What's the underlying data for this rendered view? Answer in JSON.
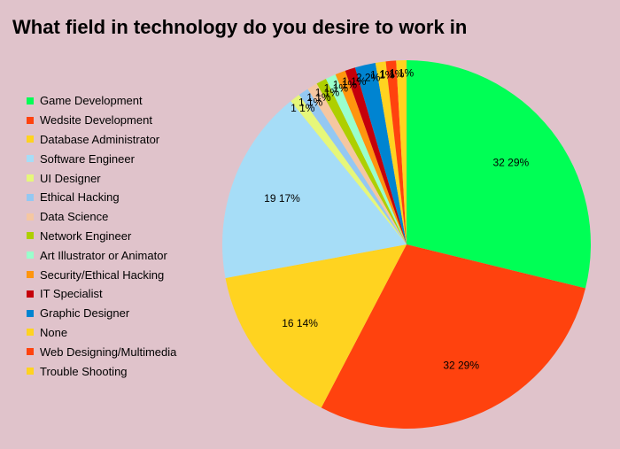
{
  "chart_data": {
    "type": "pie",
    "title": "What field in technology do you desire to work in",
    "legend_position": "left",
    "slices": [
      {
        "label": "Game Development",
        "value": 32,
        "percent": "29%",
        "color": "#00ff55"
      },
      {
        "label": "Wedsite Development",
        "value": 32,
        "percent": "29%",
        "color": "#ff420e"
      },
      {
        "label": "Database Administrator",
        "value": 16,
        "percent": "14%",
        "color": "#ffd320"
      },
      {
        "label": "Software Engineer",
        "value": 19,
        "percent": "17%",
        "color": "#a6ddf7"
      },
      {
        "label": "UI Designer",
        "value": 1,
        "percent": "1%",
        "color": "#e6f77a"
      },
      {
        "label": "Ethical Hacking",
        "value": 1,
        "percent": "1%",
        "color": "#94c8f2"
      },
      {
        "label": "Data Science",
        "value": 1,
        "percent": "1%",
        "color": "#f5c7a1"
      },
      {
        "label": "Network Engineer",
        "value": 1,
        "percent": "1%",
        "color": "#aecf00"
      },
      {
        "label": "Art Illustrator or Animator",
        "value": 1,
        "percent": "1%",
        "color": "#99ffcc"
      },
      {
        "label": "Security/Ethical Hacking",
        "value": 1,
        "percent": "1%",
        "color": "#ff950e"
      },
      {
        "label": "IT Specialist",
        "value": 1,
        "percent": "1%",
        "color": "#c5000b"
      },
      {
        "label": "Graphic Designer",
        "value": 2,
        "percent": "2%",
        "color": "#0084d1"
      },
      {
        "label": "None",
        "value": 1,
        "percent": "1%",
        "color": "#ffd320"
      },
      {
        "label": "Web Designing/Multimedia",
        "value": 1,
        "percent": "1%",
        "color": "#ff420e"
      },
      {
        "label": "Trouble Shooting",
        "value": 1,
        "percent": "1%",
        "color": "#ffd320"
      }
    ]
  }
}
